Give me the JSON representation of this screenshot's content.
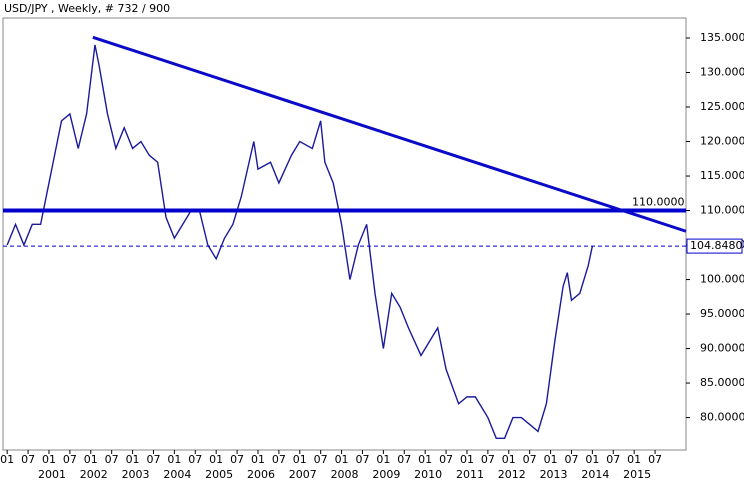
{
  "chart_data": {
    "type": "line",
    "title": "USD/JPY , Weekly, # 732 / 900",
    "x": [
      2000.0,
      2000.2,
      2000.4,
      2000.6,
      2000.8,
      2001.0,
      2001.1,
      2001.3,
      2001.5,
      2001.7,
      2001.9,
      2002.1,
      2002.2,
      2002.4,
      2002.6,
      2002.8,
      2003.0,
      2003.2,
      2003.4,
      2003.6,
      2003.8,
      2004.0,
      2004.2,
      2004.4,
      2004.6,
      2004.8,
      2005.0,
      2005.2,
      2005.4,
      2005.6,
      2005.9,
      2006.0,
      2006.3,
      2006.5,
      2006.8,
      2007.0,
      2007.3,
      2007.5,
      2007.6,
      2007.8,
      2008.0,
      2008.2,
      2008.4,
      2008.6,
      2008.8,
      2009.0,
      2009.2,
      2009.4,
      2009.6,
      2009.9,
      2010.1,
      2010.3,
      2010.5,
      2010.8,
      2011.0,
      2011.2,
      2011.5,
      2011.7,
      2011.9,
      2012.1,
      2012.3,
      2012.5,
      2012.7,
      2012.9,
      2013.1,
      2013.3,
      2013.4,
      2013.5,
      2013.7,
      2013.9,
      2014.0
    ],
    "series": [
      {
        "color": "#1a1a9a",
        "values": [
          105,
          108,
          105,
          108,
          108,
          114,
          117,
          123,
          124,
          119,
          124,
          134,
          131,
          124,
          119,
          122,
          119,
          120,
          118,
          117,
          109,
          106,
          108,
          110,
          110,
          105,
          103,
          106,
          108,
          112,
          120,
          116,
          117,
          114,
          118,
          120,
          119,
          123,
          117,
          114,
          108,
          100,
          105,
          108,
          98,
          90,
          98,
          96,
          93,
          89,
          91,
          93,
          87,
          82,
          83,
          83,
          80,
          77,
          77,
          80,
          80,
          79,
          78,
          82,
          91,
          99,
          101,
          97,
          98,
          102,
          104.848
        ]
      }
    ],
    "xlim": [
      1999.9,
      2016.24
    ],
    "ylim": [
      75.3,
      137.9
    ],
    "yticks": [
      {
        "value": 80,
        "label": "80.0000"
      },
      {
        "value": 85,
        "label": "85.0000"
      },
      {
        "value": 90,
        "label": "90.0000"
      },
      {
        "value": 95,
        "label": "95.0000"
      },
      {
        "value": 100,
        "label": "100.0000"
      },
      {
        "value": 105,
        "label": "105.0000"
      },
      {
        "value": 110,
        "label": "110.0000"
      },
      {
        "value": 115,
        "label": "115.0000"
      },
      {
        "value": 120,
        "label": "120.0000"
      },
      {
        "value": 125,
        "label": "125.0000"
      },
      {
        "value": 130,
        "label": "130.0000"
      },
      {
        "value": 135,
        "label": "135.0000"
      }
    ],
    "xticks": [
      {
        "value": 2000,
        "label": "01"
      },
      {
        "value": 2000.5,
        "label": "07"
      },
      {
        "value": 2001,
        "label": "01"
      },
      {
        "value": 2001.5,
        "label": "07"
      },
      {
        "value": 2002,
        "label": "01"
      },
      {
        "value": 2002.5,
        "label": "07"
      },
      {
        "value": 2003,
        "label": "01"
      },
      {
        "value": 2003.5,
        "label": "07"
      },
      {
        "value": 2004,
        "label": "01"
      },
      {
        "value": 2004.5,
        "label": "07"
      },
      {
        "value": 2005,
        "label": "01"
      },
      {
        "value": 2005.5,
        "label": "07"
      },
      {
        "value": 2006,
        "label": "01"
      },
      {
        "value": 2006.5,
        "label": "07"
      },
      {
        "value": 2007,
        "label": "01"
      },
      {
        "value": 2007.5,
        "label": "07"
      },
      {
        "value": 2008,
        "label": "01"
      },
      {
        "value": 2008.5,
        "label": "07"
      },
      {
        "value": 2009,
        "label": "01"
      },
      {
        "value": 2009.5,
        "label": "07"
      },
      {
        "value": 2010,
        "label": "01"
      },
      {
        "value": 2010.5,
        "label": "07"
      },
      {
        "value": 2011,
        "label": "01"
      },
      {
        "value": 2011.5,
        "label": "07"
      },
      {
        "value": 2012,
        "label": "01"
      },
      {
        "value": 2012.5,
        "label": "07"
      },
      {
        "value": 2013,
        "label": "01"
      },
      {
        "value": 2013.5,
        "label": "07"
      },
      {
        "value": 2014,
        "label": "01"
      },
      {
        "value": 2014.5,
        "label": "07"
      },
      {
        "value": 2015,
        "label": "01"
      },
      {
        "value": 2015.5,
        "label": "07"
      }
    ],
    "year_ticks": [
      2001,
      2002,
      2003,
      2004,
      2005,
      2006,
      2007,
      2008,
      2009,
      2010,
      2011,
      2012,
      2013,
      2014,
      2015
    ],
    "hlines": [
      {
        "value": 110,
        "label": "110.0000",
        "color": "#0000cc"
      },
      {
        "value": 104.848,
        "label": "104.8480",
        "color": "#0000cc",
        "dashed": true
      }
    ],
    "trendline": {
      "x": [
        2002.05,
        2016.24
      ],
      "y": [
        135.1,
        107.0
      ],
      "color": "#0a0ac8"
    }
  }
}
